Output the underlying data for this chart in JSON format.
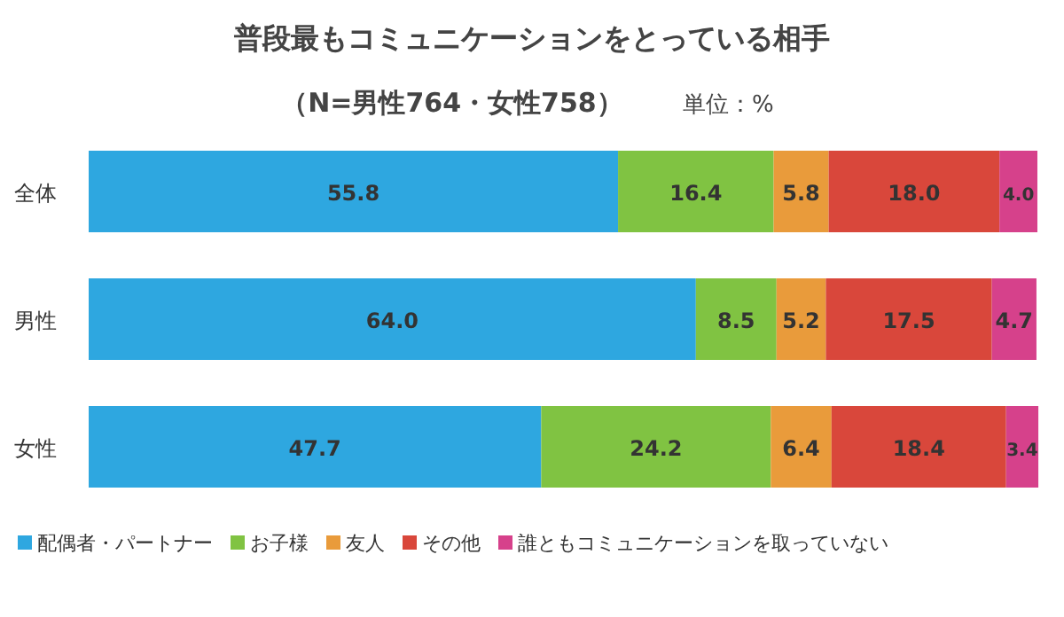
{
  "chart_data": {
    "type": "bar",
    "orientation": "horizontal",
    "stacked": true,
    "title": "普段最もコミュニケーションをとっている相手",
    "subtitle": "（N=男性764・女性758）",
    "annotations": [
      "単位：%"
    ],
    "categories": [
      "全体",
      "男性",
      "女性"
    ],
    "xlim": [
      0,
      100
    ],
    "tick_labels": "y",
    "legend": "bottom",
    "series": [
      {
        "name": "配偶者・パートナー",
        "color": "#2ea7e0",
        "values": [
          55.8,
          64.0,
          47.7
        ],
        "value_labels": [
          "55.8",
          "64.0",
          "47.7"
        ]
      },
      {
        "name": "お子様",
        "color": "#80c342",
        "values": [
          16.4,
          8.5,
          24.2
        ],
        "value_labels": [
          "16.4",
          "8.5",
          "24.2"
        ]
      },
      {
        "name": "友人",
        "color": "#e99b3b",
        "values": [
          5.8,
          5.2,
          6.4
        ],
        "value_labels": [
          "5.8",
          "5.2",
          "6.4"
        ]
      },
      {
        "name": "その他",
        "color": "#d9473b",
        "values": [
          18.0,
          17.5,
          18.4
        ],
        "value_labels": [
          "18.0",
          "17.5",
          "18.4"
        ]
      },
      {
        "name": "誰ともコミュニケーションを取っていない",
        "color": "#d6418b",
        "values": [
          4.0,
          4.7,
          3.4
        ],
        "value_labels": [
          "4.0",
          "4.7",
          "3.4"
        ]
      }
    ]
  }
}
